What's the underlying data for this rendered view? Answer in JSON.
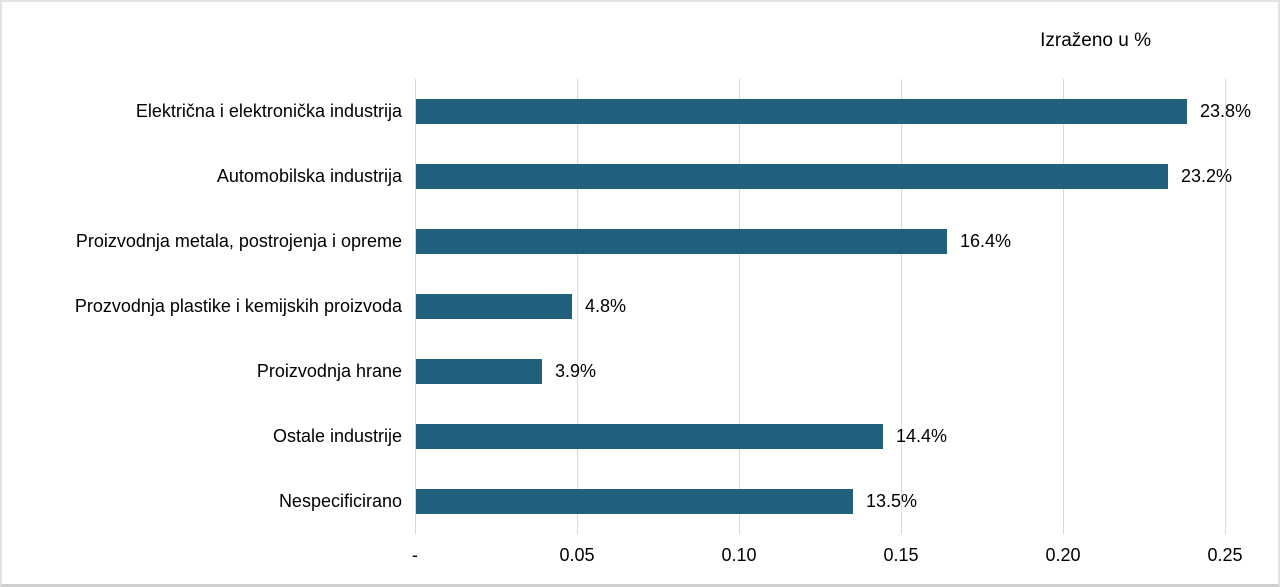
{
  "legend": {
    "title": "Izraženo u %"
  },
  "colors": {
    "bar": "#215f7d",
    "gridline": "#d9d9d9",
    "text": "#000000",
    "card_border": "#e3e3e3"
  },
  "chart_data": {
    "type": "bar",
    "orientation": "horizontal",
    "title": "Izraženo u %",
    "categories": [
      "Električna i elektronička industrija",
      "Automobilska industrija",
      "Proizvodnja metala, postrojenja i opreme",
      "Prozvodnja plastike i kemijskih proizvoda",
      "Proizvodnja hrane",
      "Ostale industrije",
      "Nespecificirano"
    ],
    "values": [
      0.238,
      0.232,
      0.164,
      0.048,
      0.039,
      0.144,
      0.135
    ],
    "data_labels": [
      "23.8%",
      "23.2%",
      "16.4%",
      "4.8%",
      "3.9%",
      "14.4%",
      "13.5%"
    ],
    "xlabel": "",
    "ylabel": "",
    "xlim": [
      0,
      0.25
    ],
    "x_ticks": [
      0,
      0.05,
      0.1,
      0.15,
      0.2,
      0.25
    ],
    "x_tick_labels": [
      "-",
      "0.05",
      "0.10",
      "0.15",
      "0.20",
      "0.25"
    ],
    "grid": true,
    "legend_position": "top-right",
    "bar_color": "#215f7d"
  }
}
